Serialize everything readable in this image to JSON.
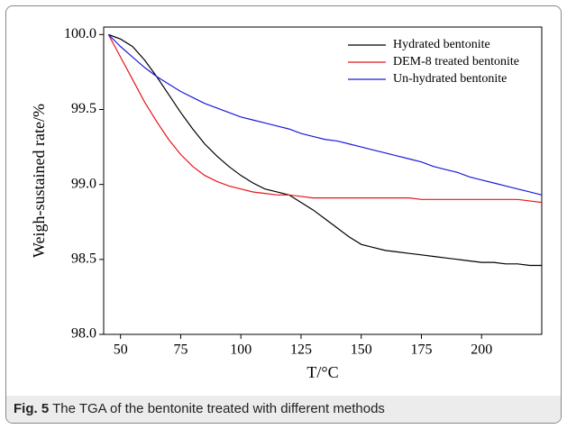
{
  "chart_data": {
    "type": "line",
    "caption_label": "Fig. 5",
    "caption": "The TGA of the bentonite treated with different methods",
    "xlabel": "T/°C",
    "ylabel": "Weigh-sustained rate/%",
    "x": [
      45,
      50,
      55,
      60,
      65,
      70,
      75,
      80,
      85,
      90,
      95,
      100,
      105,
      110,
      115,
      120,
      125,
      130,
      135,
      140,
      145,
      150,
      155,
      160,
      165,
      170,
      175,
      180,
      185,
      190,
      195,
      200,
      205,
      210,
      215,
      220,
      225
    ],
    "series": [
      {
        "name": "Hydrated bentonite",
        "color": "#000000",
        "values": [
          100,
          99.97,
          99.92,
          99.83,
          99.72,
          99.6,
          99.48,
          99.37,
          99.27,
          99.19,
          99.12,
          99.06,
          99.01,
          98.97,
          98.95,
          98.93,
          98.88,
          98.83,
          98.77,
          98.71,
          98.65,
          98.6,
          98.58,
          98.56,
          98.55,
          98.54,
          98.53,
          98.52,
          98.51,
          98.5,
          98.49,
          98.48,
          98.48,
          98.47,
          98.47,
          98.46,
          98.46
        ]
      },
      {
        "name": "DEM-8 treated bentonite",
        "color": "#e8141b",
        "values": [
          100,
          99.85,
          99.7,
          99.55,
          99.42,
          99.3,
          99.2,
          99.12,
          99.06,
          99.02,
          98.99,
          98.97,
          98.95,
          98.94,
          98.93,
          98.93,
          98.92,
          98.91,
          98.91,
          98.91,
          98.91,
          98.91,
          98.91,
          98.91,
          98.91,
          98.91,
          98.9,
          98.9,
          98.9,
          98.9,
          98.9,
          98.9,
          98.9,
          98.9,
          98.9,
          98.89,
          98.88
        ]
      },
      {
        "name": "Un-hydrated bentonite",
        "color": "#1a1adc",
        "values": [
          100,
          99.92,
          99.85,
          99.78,
          99.72,
          99.67,
          99.62,
          99.58,
          99.54,
          99.51,
          99.48,
          99.45,
          99.43,
          99.41,
          99.39,
          99.37,
          99.34,
          99.32,
          99.3,
          99.29,
          99.27,
          99.25,
          99.23,
          99.21,
          99.19,
          99.17,
          99.15,
          99.12,
          99.1,
          99.08,
          99.05,
          99.03,
          99.01,
          98.99,
          98.97,
          98.95,
          98.93
        ]
      }
    ],
    "xlim": [
      43,
      225
    ],
    "xticks": [
      50,
      75,
      100,
      125,
      150,
      175,
      200
    ],
    "ylim": [
      98,
      100.05
    ],
    "yticks": [
      {
        "value": 98,
        "label": "98.0"
      },
      98.5,
      {
        "value": 99,
        "label": "99.0"
      },
      99.5,
      {
        "value": 100,
        "label": "100.0"
      }
    ],
    "legend": "upper right"
  }
}
